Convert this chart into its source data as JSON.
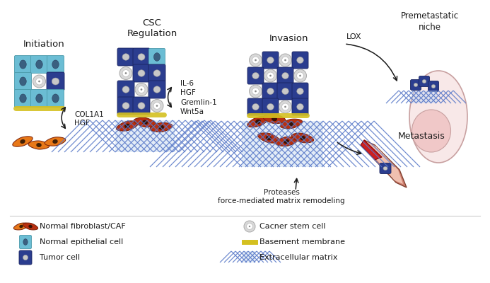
{
  "background_color": "#ffffff",
  "labels": {
    "initiation": "Initiation",
    "csc": "CSC\nRegulation",
    "invasion": "Invasion",
    "premetastatic": "Premetastatic\nniche",
    "metastasis": "Metastasis",
    "col1a1_hgf": "COL1A1\nHGF",
    "il6_etc": "IL-6\nHGF\nGremlin-1\nWnt5a",
    "lox": "LOX",
    "proteases": "Proteases\nforce-mediated matrix remodeling",
    "legend_fibroblast": "Normal fibroblast/CAF",
    "legend_epithelial": "Normal epithelial cell",
    "legend_tumor": "Tumor cell",
    "legend_cancer_stem": "Cacner stem cell",
    "legend_basement": "Basement membrane",
    "legend_ecm": "Extracellular matrix"
  },
  "colors": {
    "background": "#ffffff",
    "normal_epithelial": "#6bbdd4",
    "normal_epithelial_edge": "#4a9aaa",
    "tumor_cell": "#2b3d8f",
    "tumor_cell_edge": "#1a2560",
    "cancer_stem_outer": "#d8d8d8",
    "cancer_stem_inner": "#ffffff",
    "fibroblast_normal": "#e87818",
    "fibroblast_caf": "#b83010",
    "fibroblast_edge": "#7a2008",
    "ecm_bg": "#c8daf0",
    "ecm_line": "#5878c8",
    "basement_membrane": "#d4c020",
    "blood_vessel_outer": "#c85050",
    "blood_vessel_inner": "#f0b0b0",
    "lung_outer": "#f8e8e8",
    "lung_inner": "#f0c8c8",
    "text_color": "#1a1a1a",
    "arrow_color": "#1a1a1a"
  }
}
